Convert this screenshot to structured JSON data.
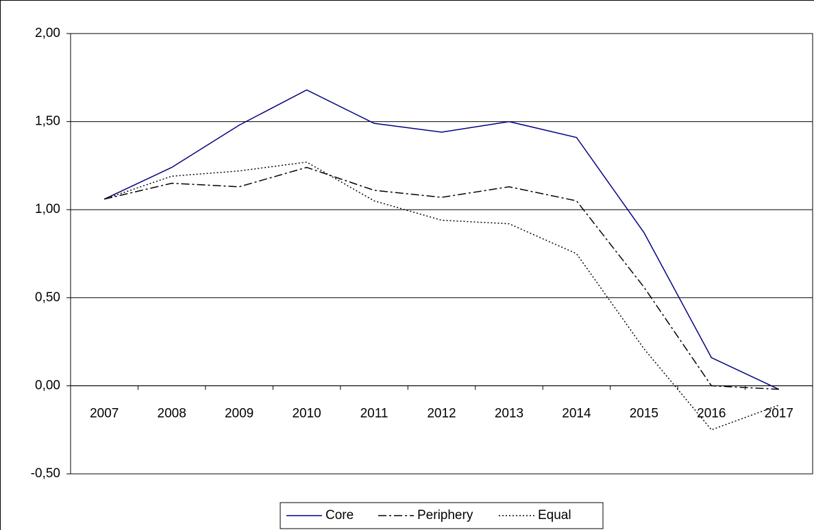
{
  "chart_data": {
    "type": "line",
    "categories": [
      "2007",
      "2008",
      "2009",
      "2010",
      "2011",
      "2012",
      "2013",
      "2014",
      "2015",
      "2016",
      "2017"
    ],
    "series": [
      {
        "name": "Core",
        "color": "#000080",
        "style": "solid",
        "values": [
          1.06,
          1.24,
          1.48,
          1.68,
          1.49,
          1.44,
          1.5,
          1.41,
          0.87,
          0.16,
          -0.02
        ]
      },
      {
        "name": "Periphery",
        "color": "#000000",
        "style": "dash-dot",
        "values": [
          1.06,
          1.15,
          1.13,
          1.24,
          1.11,
          1.07,
          1.13,
          1.05,
          0.56,
          0.0,
          -0.02
        ]
      },
      {
        "name": "Equal",
        "color": "#000000",
        "style": "dotted",
        "values": [
          1.06,
          1.19,
          1.22,
          1.27,
          1.05,
          0.94,
          0.92,
          0.75,
          0.21,
          -0.25,
          -0.11
        ]
      }
    ],
    "ylim": [
      -0.5,
      2
    ],
    "yticks": [
      {
        "value": -0.5,
        "label": "-0,50"
      },
      {
        "value": 0,
        "label": "0,00"
      },
      {
        "value": 0.5,
        "label": "0,50"
      },
      {
        "value": 1,
        "label": "1,00"
      },
      {
        "value": 1.5,
        "label": "1,50"
      },
      {
        "value": 2,
        "label": "2,00"
      }
    ],
    "grid": true,
    "legend": "bottom"
  }
}
